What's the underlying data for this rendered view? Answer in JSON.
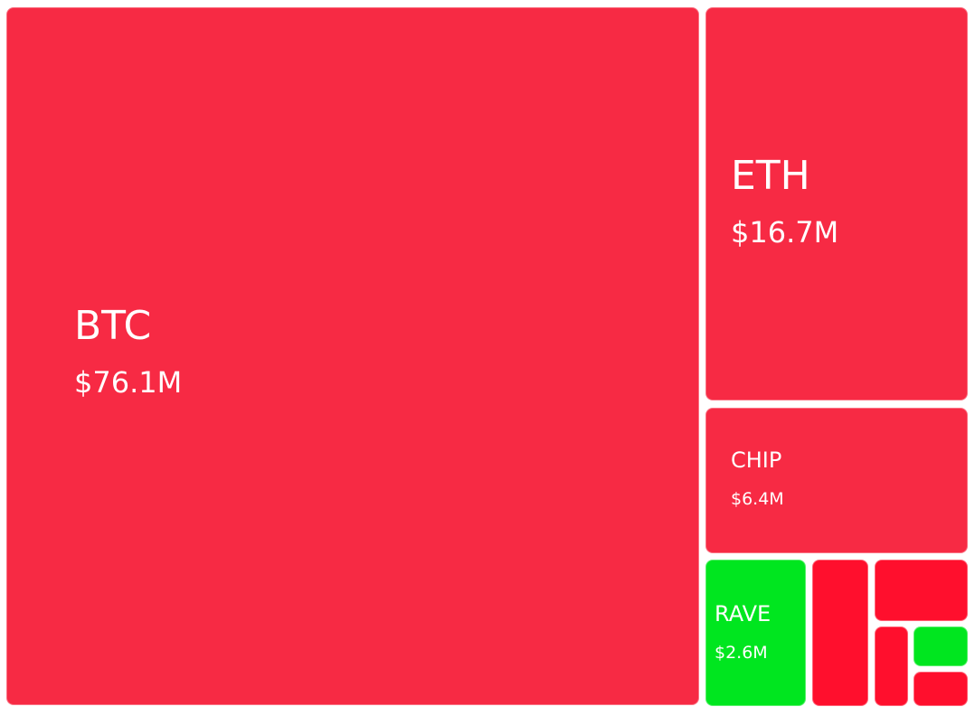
{
  "chart_data": {
    "type": "treemap",
    "value_unit": "USD",
    "colors": {
      "negative": "#f72a44",
      "positive": "#00e61f",
      "negative_small": "#ff0f2d"
    },
    "items": [
      {
        "name": "BTC",
        "value_label": "$76.1M",
        "value": 76.1,
        "sign": "negative"
      },
      {
        "name": "ETH",
        "value_label": "$16.7M",
        "value": 16.7,
        "sign": "negative"
      },
      {
        "name": "CHIP",
        "value_label": "$6.4M",
        "value": 6.4,
        "sign": "negative"
      },
      {
        "name": "RAVE",
        "value_label": "$2.6M",
        "value": 2.6,
        "sign": "positive"
      },
      {
        "name": "",
        "value_label": "",
        "value": 1.8,
        "sign": "negative_small"
      },
      {
        "name": "",
        "value_label": "",
        "value": 1.5,
        "sign": "negative_small"
      },
      {
        "name": "",
        "value_label": "",
        "value": 0.8,
        "sign": "negative_small"
      },
      {
        "name": "",
        "value_label": "",
        "value": 0.6,
        "sign": "positive"
      },
      {
        "name": "",
        "value_label": "",
        "value": 0.4,
        "sign": "negative_small"
      }
    ]
  }
}
